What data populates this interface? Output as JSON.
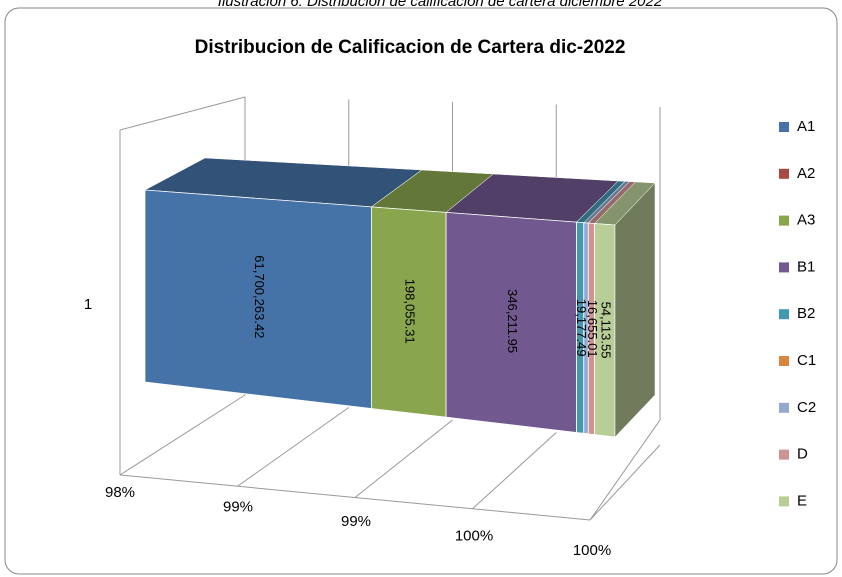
{
  "caption": "Ilustración 6: Distribución de calificación de cartera diciembre 2022",
  "chart_data": {
    "type": "bar3d_stacked",
    "title": "Distribucion de Calificacion de Cartera dic-2022",
    "categories": [
      "1"
    ],
    "series": [
      {
        "name": "A1",
        "color": "#4572a7",
        "values": [
          61700263.42
        ],
        "value_labels": [
          "61,700,263.42"
        ]
      },
      {
        "name": "A2",
        "color": "#aa4643",
        "values": [
          0
        ]
      },
      {
        "name": "A3",
        "color": "#89a54e",
        "values": [
          198055.31
        ],
        "value_labels": [
          "198,055.31"
        ]
      },
      {
        "name": "B1",
        "color": "#71588f",
        "values": [
          346211.95
        ],
        "value_labels": [
          "346,211.95"
        ]
      },
      {
        "name": "B2",
        "color": "#4198af",
        "values": [
          19177.49
        ],
        "value_labels": [
          "19,177.49"
        ]
      },
      {
        "name": "C1",
        "color": "#db843d",
        "values": [
          0
        ]
      },
      {
        "name": "C2",
        "color": "#93a9cf",
        "values": [
          12000
        ]
      },
      {
        "name": "D",
        "color": "#d19392",
        "values": [
          16655.01
        ],
        "value_labels": [
          "16,655.01"
        ]
      },
      {
        "name": "E",
        "color": "#b9cd96",
        "values": [
          54113.55
        ],
        "value_labels": [
          "54,113.55"
        ]
      }
    ],
    "xlim": [
      98,
      100
    ],
    "xticks": [
      {
        "value": 98,
        "label": "98%"
      },
      {
        "value": 98.5,
        "label": "99%"
      },
      {
        "value": 99,
        "label": "99%"
      },
      {
        "value": 99.5,
        "label": "100%"
      },
      {
        "value": 100,
        "label": "100%"
      }
    ],
    "grid": true,
    "legend": "right"
  }
}
